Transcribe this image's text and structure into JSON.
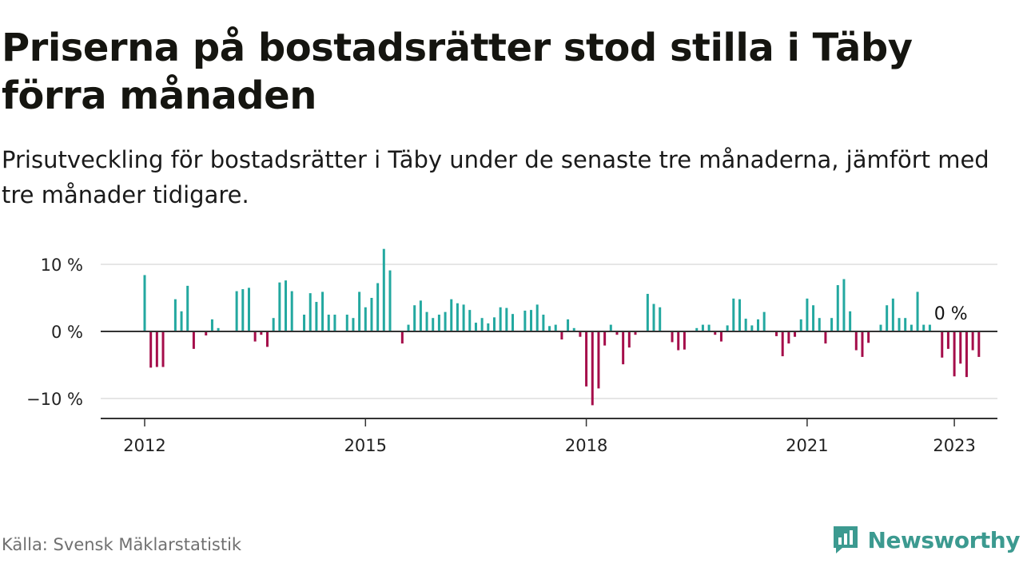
{
  "header": {
    "title": "Priserna på bostadsrätter stod stilla i Täby förra månaden",
    "subtitle": "Prisutveckling för bostadsrätter i Täby under de senaste tre månaderna, jämfört med tre månader tidigare."
  },
  "footer": {
    "source": "Källa: Svensk Mäklarstatistik",
    "brand": "Newsworthy"
  },
  "colors": {
    "positive": "#23a8a0",
    "negative": "#a50d4a",
    "zero_line": "#333333",
    "grid": "#dddddd",
    "brand": "#3c9a90"
  },
  "chart_data": {
    "type": "bar",
    "x_label_format": "year",
    "y_ticks": [
      10,
      0,
      -10
    ],
    "y_tick_labels": [
      "10 %",
      "0 %",
      "−10 %"
    ],
    "x_ticks": [
      "2012",
      "2015",
      "2018",
      "2021",
      "2023"
    ],
    "ylim": [
      -13,
      10
    ],
    "grid": true,
    "annotation": {
      "text": "0 %",
      "month": "2022-11"
    },
    "series": [
      {
        "start": "2012-01",
        "values": [
          8.4,
          -5.4,
          -5.3,
          -5.3,
          0,
          4.8,
          3.0,
          6.8,
          -2.6,
          0,
          -0.6,
          1.8,
          0.5,
          0,
          0,
          6.0,
          6.3,
          6.5,
          -1.5,
          -0.5,
          -2.3,
          2.0,
          7.3,
          7.6,
          6.0,
          0,
          2.5,
          5.7,
          4.4,
          5.9,
          2.5,
          2.5,
          0,
          2.5,
          2.0,
          5.9,
          3.6,
          5.0,
          7.2,
          12.3,
          9.1,
          0,
          -1.8,
          1.0,
          3.9,
          4.6,
          2.9,
          2.0,
          2.5,
          2.9,
          4.8,
          4.2,
          4.0,
          3.2,
          1.3,
          2.0,
          1.2,
          2.1,
          3.6,
          3.5,
          2.6,
          0,
          3.1,
          3.2,
          4.0,
          2.5,
          0.8,
          1.0,
          -1.2,
          1.8,
          0.5,
          -0.8,
          -8.2,
          -11.0,
          -8.5,
          -2.1,
          1.0,
          -0.5,
          -4.9,
          -2.4,
          -0.5,
          0,
          5.6,
          4.1,
          3.6,
          0,
          -1.6,
          -2.8,
          -2.7,
          0,
          0.5,
          1.0,
          1.0,
          -0.5,
          -1.5,
          0.9,
          4.9,
          4.8,
          1.9,
          0.9,
          1.8,
          2.9,
          0,
          -0.7,
          -3.7,
          -1.8,
          -0.8,
          1.8,
          4.9,
          3.9,
          2.0,
          -1.8,
          2.0,
          6.9,
          7.8,
          3.0,
          -2.8,
          -3.8,
          -1.7,
          0,
          1.0,
          3.9,
          4.9,
          2.0,
          2.0,
          1.0,
          5.9,
          1.0,
          1.0,
          0,
          -3.9,
          -2.6,
          -6.7,
          -4.8,
          -6.8,
          -2.8,
          -3.8,
          0
        ]
      }
    ]
  }
}
